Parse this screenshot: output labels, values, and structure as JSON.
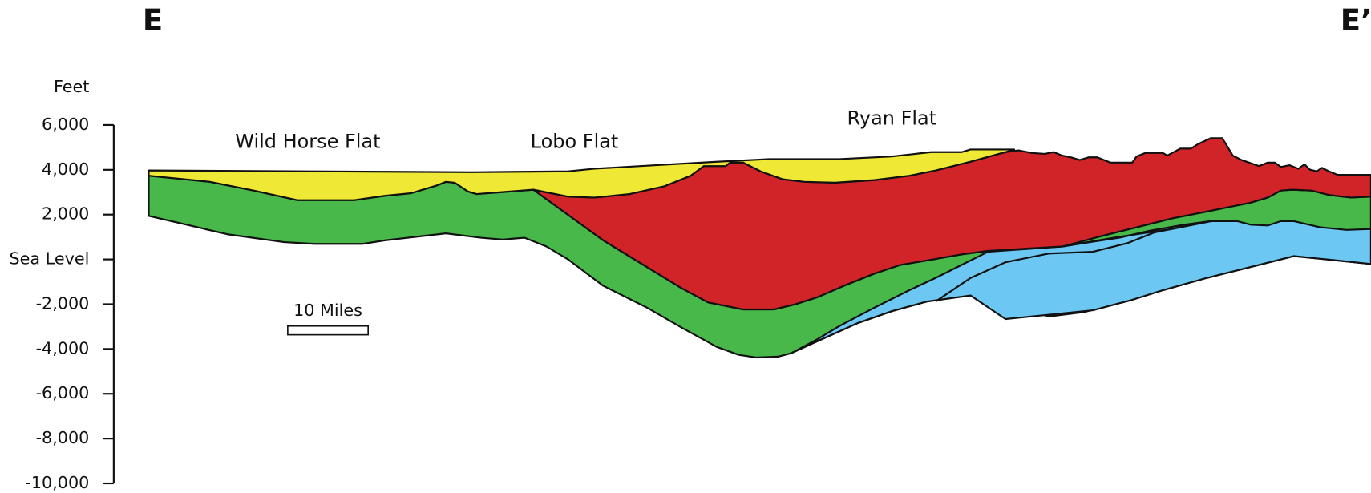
{
  "header": {
    "left": "E",
    "right": "E’"
  },
  "axis": {
    "unit": "Feet",
    "labels": [
      "6,000",
      "4,000",
      "2,000",
      "Sea Level",
      "-2,000",
      "-4,000",
      "-6,000",
      "-8,000",
      "-10,000"
    ]
  },
  "places": [
    "Wild Horse Flat",
    "Lobo Flat",
    "Ryan Flat"
  ],
  "scale_bar": "10 Miles"
}
